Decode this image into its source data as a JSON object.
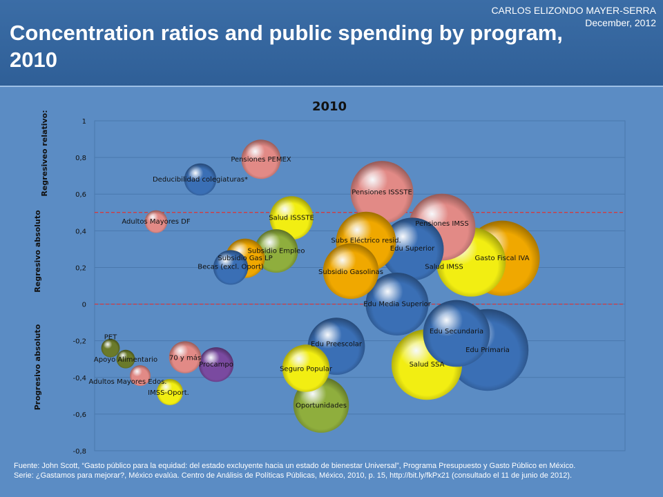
{
  "header": {
    "author": "CARLOS ELIZONDO MAYER-SERRA",
    "date": "December,  2012",
    "title": "Concentration ratios and public spending by program, 2010"
  },
  "footer": {
    "line1": "Fuente: John  Scott, “Gasto público para la equidad: del estado excluyente hacia un estado de bienestar Universal”, Programa Presupuesto y Gasto Público en México.",
    "line2": "Serie: ¿Gastamos para mejorar?, México evalúa. Centro de Análisis de Políticas Públicas, México, 2010, p. 15, http://bit.ly/fkPx21 (consultado el 11 de junio de 2012)."
  },
  "colors": {
    "yellow": "#f2ee12",
    "orange": "#f0a800",
    "blue": "#3a6fb5",
    "green": "#8fae3d",
    "pink": "#e28a86",
    "purple": "#7a4aa0",
    "olive": "#6a7a2a"
  },
  "chart_data": {
    "type": "scatter",
    "title": "2010",
    "ylim": [
      -0.8,
      1
    ],
    "yticks": [
      "1",
      "0,8",
      "0,6",
      "0,4",
      "0,2",
      "0",
      "-0,2",
      "-0,4",
      "-0,6",
      "-0,8"
    ],
    "ytick_values": [
      1,
      0.8,
      0.6,
      0.4,
      0.2,
      0,
      -0.2,
      -0.4,
      -0.6,
      -0.8
    ],
    "zone_labels": [
      "Regresiveo relativo:",
      "Regresivo absoluto",
      "Progresivo absoluto"
    ],
    "reference_lines": [
      0.5,
      0
    ],
    "grid": true,
    "points": [
      {
        "name": "Pensiones PEMEX",
        "y": 0.79,
        "size": 0.9,
        "color": "pink"
      },
      {
        "name": "Deducibilidad  colegiaturas*",
        "y": 0.68,
        "size": 0.6,
        "color": "blue"
      },
      {
        "name": "Pensiones ISSSTE",
        "y": 0.61,
        "size": 2.3,
        "color": "pink"
      },
      {
        "name": "Salud ISSSTE",
        "y": 0.47,
        "size": 1.1,
        "color": "yellow"
      },
      {
        "name": "Adultos Mayores DF",
        "y": 0.45,
        "size": 0.3,
        "color": "pink"
      },
      {
        "name": "Pensiones IMSS",
        "y": 0.42,
        "size": 2.6,
        "color": "pink"
      },
      {
        "name": "Subs Eléctrico resid.",
        "y": 0.34,
        "size": 2.1,
        "color": "orange"
      },
      {
        "name": "Edu Superior",
        "y": 0.3,
        "size": 2.3,
        "color": "blue"
      },
      {
        "name": "Subsidio  Empleo",
        "y": 0.29,
        "size": 1.1,
        "color": "green"
      },
      {
        "name": "Subsidio  Gas LP",
        "y": 0.25,
        "size": 0.9,
        "color": "orange"
      },
      {
        "name": "Gasto Fiscal IVA",
        "y": 0.25,
        "size": 3.3,
        "color": "orange"
      },
      {
        "name": "Salud IMSS",
        "y": 0.23,
        "size": 2.8,
        "color": "yellow"
      },
      {
        "name": "Becas  (excl. Oport)",
        "y": 0.2,
        "size": 0.7,
        "color": "blue"
      },
      {
        "name": "Subsidio  Gasolinas",
        "y": 0.18,
        "size": 1.8,
        "color": "orange"
      },
      {
        "name": "Edu Media Superior",
        "y": 0.0,
        "size": 2.3,
        "color": "blue"
      },
      {
        "name": "Edu Secundaria",
        "y": -0.16,
        "size": 2.6,
        "color": "blue"
      },
      {
        "name": "PET",
        "y": -0.24,
        "size": 0.2,
        "color": "olive"
      },
      {
        "name": "Edu Primaria",
        "y": -0.25,
        "size": 3.9,
        "color": "blue"
      },
      {
        "name": "Edu Preescolar",
        "y": -0.23,
        "size": 1.9,
        "color": "blue"
      },
      {
        "name": "Apoyo Alimentario",
        "y": -0.3,
        "size": 0.2,
        "color": "olive"
      },
      {
        "name": "70 y más",
        "y": -0.29,
        "size": 0.6,
        "color": "pink"
      },
      {
        "name": "Procampo",
        "y": -0.33,
        "size": 0.7,
        "color": "purple"
      },
      {
        "name": "Salud SSA",
        "y": -0.33,
        "size": 2.9,
        "color": "yellow"
      },
      {
        "name": "Seguro Popular",
        "y": -0.35,
        "size": 1.3,
        "color": "yellow"
      },
      {
        "name": "Adultos Mayores Edos.",
        "y": -0.39,
        "size": 0.25,
        "color": "pink"
      },
      {
        "name": "IMSS-Oport.",
        "y": -0.48,
        "size": 0.4,
        "color": "yellow"
      },
      {
        "name": "Oportunidades",
        "y": -0.55,
        "size": 1.8,
        "color": "green"
      }
    ]
  }
}
